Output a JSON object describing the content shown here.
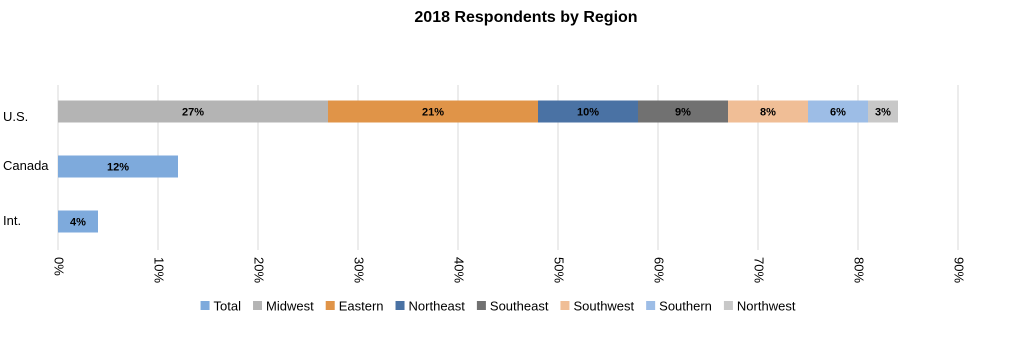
{
  "chart_data": {
    "type": "stacked-bar-horizontal",
    "title": "2018 Respondents by Region",
    "categories": [
      "U.S.",
      "Canada",
      "Int."
    ],
    "series": [
      {
        "name": "Total",
        "color": "#7eaadc",
        "values": [
          null,
          12,
          4
        ],
        "value_labels": [
          null,
          "12%",
          "4%"
        ]
      },
      {
        "name": "Midwest",
        "color": "#b4b4b4",
        "values": [
          27,
          null,
          null
        ],
        "value_labels": [
          "27%",
          null,
          null
        ]
      },
      {
        "name": "Eastern",
        "color": "#e09448",
        "values": [
          21,
          null,
          null
        ],
        "value_labels": [
          "21%",
          null,
          null
        ]
      },
      {
        "name": "Northeast",
        "color": "#4a72a4",
        "values": [
          10,
          null,
          null
        ],
        "value_labels": [
          "10%",
          null,
          null
        ]
      },
      {
        "name": "Southeast",
        "color": "#717171",
        "values": [
          9,
          null,
          null
        ],
        "value_labels": [
          "9%",
          null,
          null
        ]
      },
      {
        "name": "Southwest",
        "color": "#f0be96",
        "values": [
          8,
          null,
          null
        ],
        "value_labels": [
          "8%",
          null,
          null
        ]
      },
      {
        "name": "Southern",
        "color": "#9dbde6",
        "values": [
          6,
          null,
          null
        ],
        "value_labels": [
          "6%",
          null,
          null
        ]
      },
      {
        "name": "Northwest",
        "color": "#c8c8c8",
        "values": [
          3,
          null,
          null
        ],
        "value_labels": [
          "3%",
          null,
          null
        ]
      }
    ],
    "xlim": [
      0,
      90
    ],
    "xticks": [
      {
        "value": 0,
        "label": "0%"
      },
      {
        "value": 10,
        "label": "10%"
      },
      {
        "value": 20,
        "label": "20%"
      },
      {
        "value": 30,
        "label": "30%"
      },
      {
        "value": 40,
        "label": "40%"
      },
      {
        "value": 50,
        "label": "50%"
      },
      {
        "value": 60,
        "label": "60%"
      },
      {
        "value": 70,
        "label": "70%"
      },
      {
        "value": 80,
        "label": "80%"
      },
      {
        "value": 90,
        "label": "90%"
      }
    ],
    "grid": true,
    "legend": "bottom"
  }
}
